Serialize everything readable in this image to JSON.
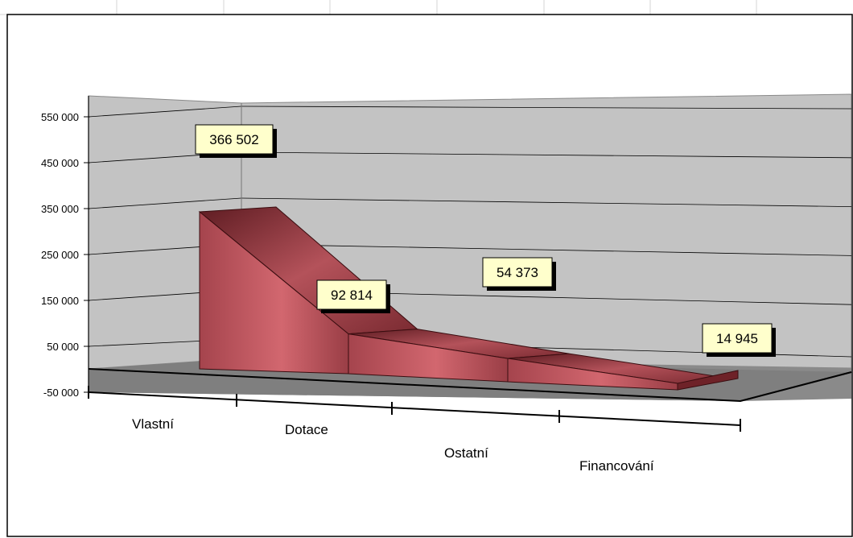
{
  "chart_data": {
    "type": "area",
    "categories": [
      "Vlastní",
      "Dotace",
      "Ostatní",
      "Financování"
    ],
    "values": [
      366502,
      92814,
      54373,
      14945
    ],
    "data_labels": [
      "366 502",
      "92 814",
      "54 373",
      "14 945"
    ],
    "yticks": [
      "550 000",
      "450 000",
      "350 000",
      "250 000",
      "150 000",
      "50 000",
      "-50 000"
    ],
    "ytick_values": [
      550000,
      450000,
      350000,
      250000,
      150000,
      50000,
      -50000
    ],
    "ylim": [
      -50000,
      600000
    ],
    "title": "",
    "xlabel": "",
    "ylabel": "",
    "grid": true,
    "legend": "none",
    "colors": {
      "series": "#b04e57",
      "series_dark": "#6e2228",
      "series_top": "#8c383f",
      "wall": "#c0c0c0",
      "floor": "#808080",
      "label_bg": "#ffffcc"
    }
  }
}
